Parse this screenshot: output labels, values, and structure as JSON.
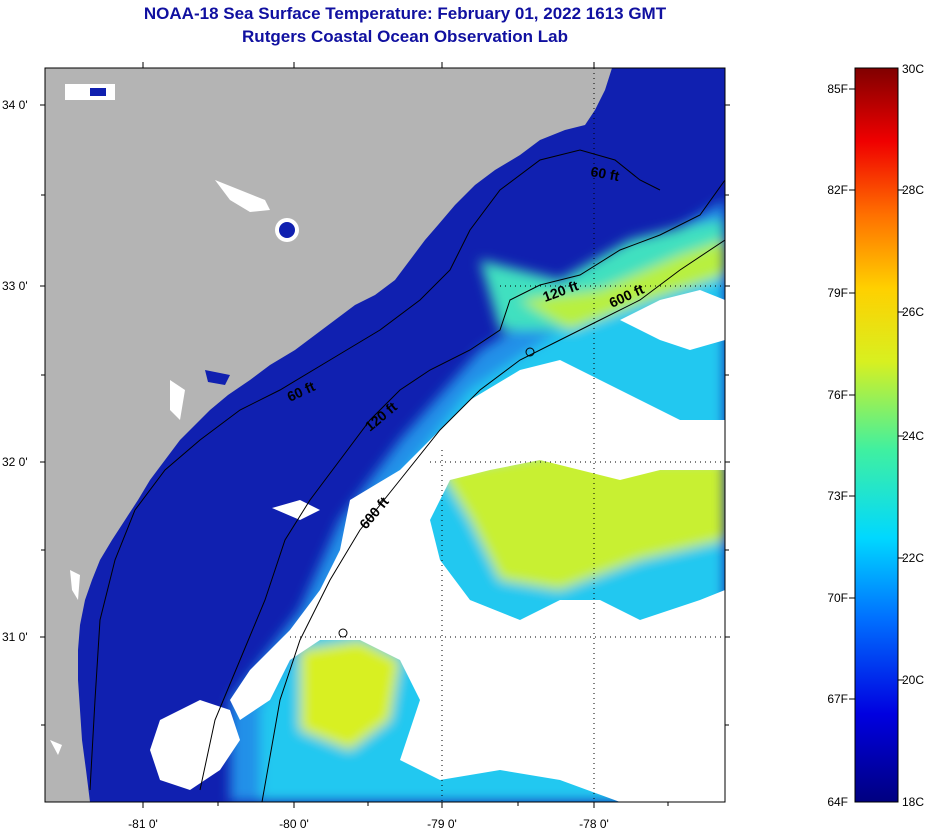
{
  "header": {
    "title": "NOAA-18 Sea Surface Temperature:  February 01, 2022 1613 GMT",
    "subtitle": "Rutgers Coastal Ocean Observation Lab"
  },
  "map": {
    "lat_labels": [
      "34 0'",
      "33 0'",
      "32 0'",
      "31 0'"
    ],
    "lon_labels": [
      "-81 0'",
      "-80 0'",
      "-79 0'",
      "-78 0'"
    ],
    "contour_labels": [
      "60 ft",
      "120 ft",
      "600 ft",
      "60 ft",
      "120 ft",
      "600 ft"
    ],
    "colors": {
      "land": "#b4b4b4",
      "cloud": "#ffffff",
      "cold": "#1020b0",
      "mid": "#20b0f0",
      "warm": "#d8f040"
    }
  },
  "colorbar": {
    "fahrenheit_labels": [
      "85F",
      "82F",
      "79F",
      "76F",
      "73F",
      "70F",
      "67F",
      "64F"
    ],
    "celsius_labels": [
      "30C",
      "28C",
      "26C",
      "24C",
      "22C",
      "20C",
      "18C"
    ]
  }
}
